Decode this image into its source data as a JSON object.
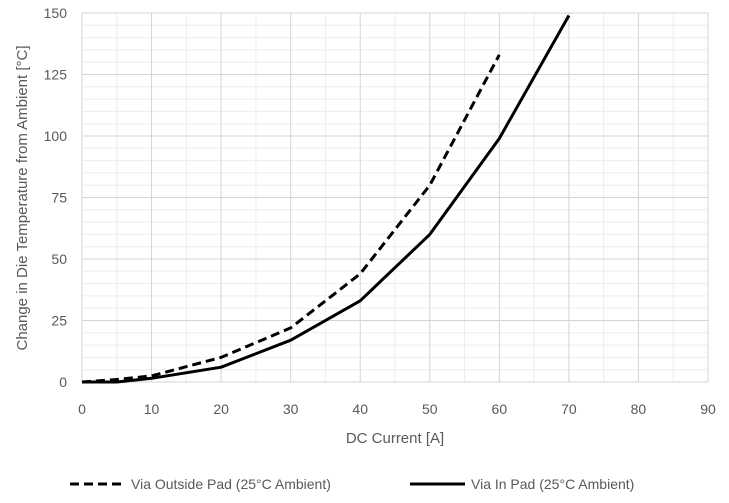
{
  "chart_data": {
    "type": "line",
    "title": "",
    "xlabel": "DC Current [A]",
    "ylabel": "Change in Die Temperature from Ambient [°C]",
    "xlim": [
      0,
      90
    ],
    "ylim": [
      0,
      150
    ],
    "xticks": [
      0,
      10,
      20,
      30,
      40,
      50,
      60,
      70,
      80,
      90
    ],
    "yticks": [
      0,
      25,
      50,
      75,
      100,
      125,
      150
    ],
    "grid": true,
    "legend_position": "bottom",
    "series": [
      {
        "name": "Via Outside Pad (25°C Ambient)",
        "style": "dashed",
        "color": "#000000",
        "x": [
          0,
          5,
          10,
          20,
          30,
          40,
          50,
          60
        ],
        "y": [
          0,
          1,
          2.5,
          10,
          22,
          44,
          80,
          133
        ]
      },
      {
        "name": "Via In Pad (25°C Ambient)",
        "style": "solid",
        "color": "#000000",
        "x": [
          0,
          5,
          10,
          20,
          30,
          40,
          50,
          60,
          70
        ],
        "y": [
          0,
          0,
          1.5,
          6,
          17,
          33,
          60,
          99,
          149
        ]
      }
    ]
  }
}
